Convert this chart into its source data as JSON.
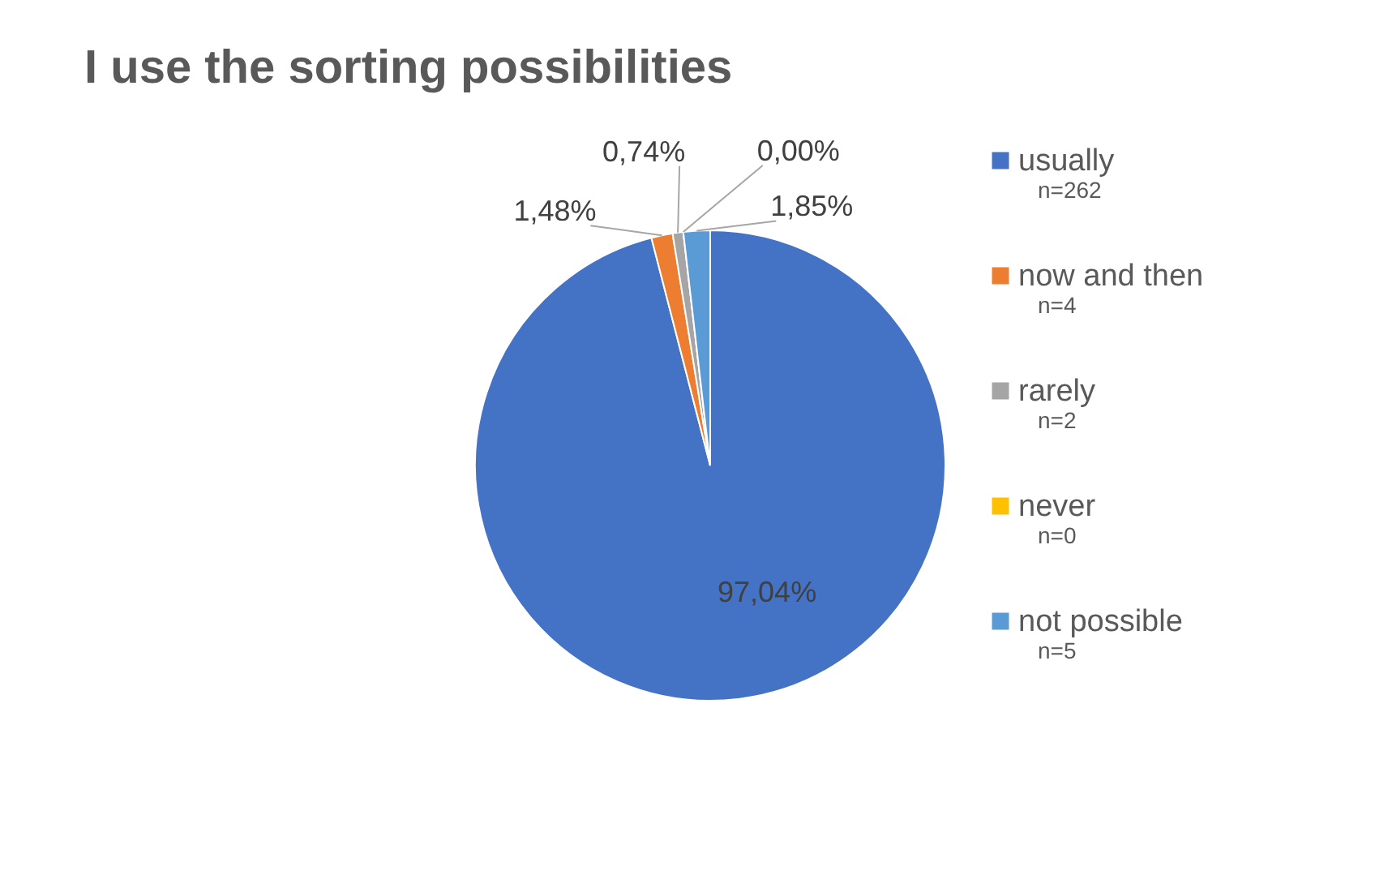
{
  "chart_data": {
    "type": "pie",
    "title": "I use the sorting possibilities",
    "categories": [
      "usually",
      "now and then",
      "rarely",
      "never",
      "not possible"
    ],
    "values": [
      97.04,
      1.48,
      0.74,
      0.0,
      1.85
    ],
    "colors": [
      "#4472c4",
      "#ed7d31",
      "#a5a5a5",
      "#ffc000",
      "#5b9bd5"
    ],
    "value_labels": [
      "97,04%",
      "1,48%",
      "0,74%",
      "0,00%",
      "1,85%"
    ],
    "annotations": [
      "n=262",
      "n=4",
      "n=2",
      "n=0",
      "n=5"
    ],
    "legend": "right"
  }
}
